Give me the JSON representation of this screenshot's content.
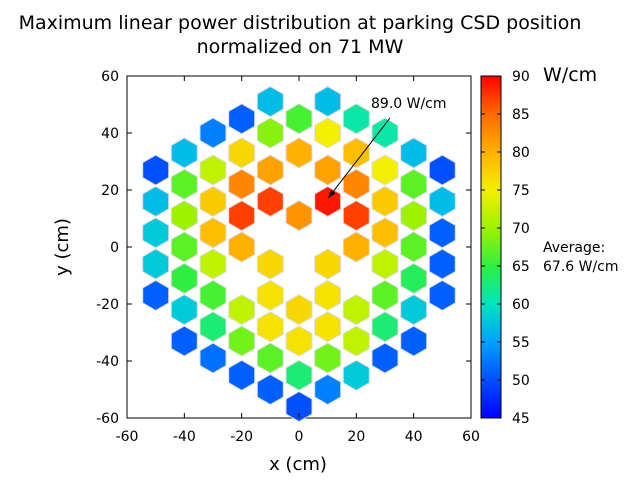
{
  "chart_data": {
    "type": "heatmap",
    "title_lines": [
      "Maximum linear power distribution at parking CSD position",
      "normalized on 71 MW"
    ],
    "xlabel": "x (cm)",
    "ylabel": "y (cm)",
    "xlim": [
      -60,
      60
    ],
    "ylim": [
      -60,
      60
    ],
    "xticks": [
      "-60",
      "-40",
      "-20",
      "0",
      "20",
      "40",
      "60"
    ],
    "yticks": [
      "-60",
      "-40",
      "-20",
      "0",
      "20",
      "40",
      "60"
    ],
    "colorbar": {
      "label": "W/cm",
      "min": 45,
      "max": 90,
      "ticks": [
        "45",
        "50",
        "55",
        "60",
        "65",
        "70",
        "75",
        "80",
        "85",
        "90"
      ],
      "colormap": [
        "#0000ff",
        "#0050ff",
        "#00a0ff",
        "#00e5c0",
        "#30ef40",
        "#9ef200",
        "#f3ef00",
        "#ffb000",
        "#ff6a00",
        "#ff0000"
      ]
    },
    "annotation": {
      "text": "89.0 W/cm",
      "x": 9.5,
      "y": 16.5
    },
    "average_label": "Average:",
    "average_value": "67.6 W/cm",
    "cell_outline": "#dddddd",
    "assemblies": [
      {
        "x": -10,
        "y": 51,
        "v": 57
      },
      {
        "x": 10,
        "y": 51,
        "v": 57
      },
      {
        "x": -20,
        "y": 45,
        "v": 51
      },
      {
        "x": 0,
        "y": 45,
        "v": 66
      },
      {
        "x": 20,
        "y": 45,
        "v": 61
      },
      {
        "x": -30,
        "y": 40,
        "v": 53
      },
      {
        "x": -10,
        "y": 40,
        "v": 69
      },
      {
        "x": 10,
        "y": 40,
        "v": 75
      },
      {
        "x": 30,
        "y": 40,
        "v": 61
      },
      {
        "x": -40,
        "y": 33,
        "v": 57
      },
      {
        "x": -20,
        "y": 33,
        "v": 77
      },
      {
        "x": 0,
        "y": 33,
        "v": 80
      },
      {
        "x": 20,
        "y": 33,
        "v": 79
      },
      {
        "x": 40,
        "y": 33,
        "v": 57
      },
      {
        "x": -50,
        "y": 27,
        "v": 50
      },
      {
        "x": -30,
        "y": 27,
        "v": 72
      },
      {
        "x": -10,
        "y": 27,
        "v": 81
      },
      {
        "x": 10,
        "y": 27,
        "v": 81
      },
      {
        "x": 30,
        "y": 27,
        "v": 75
      },
      {
        "x": 50,
        "y": 27,
        "v": 50
      },
      {
        "x": -40,
        "y": 22,
        "v": 67
      },
      {
        "x": -20,
        "y": 22,
        "v": 83
      },
      {
        "x": 20,
        "y": 22,
        "v": 83
      },
      {
        "x": 40,
        "y": 22,
        "v": 67
      },
      {
        "x": -50,
        "y": 16,
        "v": 57
      },
      {
        "x": -30,
        "y": 16,
        "v": 78
      },
      {
        "x": -10,
        "y": 16,
        "v": 87
      },
      {
        "x": 10,
        "y": 16,
        "v": 89
      },
      {
        "x": 30,
        "y": 16,
        "v": 78
      },
      {
        "x": 50,
        "y": 16,
        "v": 57
      },
      {
        "x": -40,
        "y": 11,
        "v": 70
      },
      {
        "x": -20,
        "y": 11,
        "v": 87
      },
      {
        "x": 0,
        "y": 11,
        "v": 82
      },
      {
        "x": 20,
        "y": 11,
        "v": 87
      },
      {
        "x": 40,
        "y": 11,
        "v": 70
      },
      {
        "x": -50,
        "y": 5,
        "v": 58
      },
      {
        "x": -30,
        "y": 5,
        "v": 79
      },
      {
        "x": 30,
        "y": 5,
        "v": 79
      },
      {
        "x": 50,
        "y": 5,
        "v": 51
      },
      {
        "x": -40,
        "y": 0,
        "v": 67
      },
      {
        "x": -20,
        "y": 0,
        "v": 80
      },
      {
        "x": 20,
        "y": 0,
        "v": 80
      },
      {
        "x": 40,
        "y": 0,
        "v": 67
      },
      {
        "x": -50,
        "y": -6,
        "v": 58
      },
      {
        "x": -30,
        "y": -6,
        "v": 72
      },
      {
        "x": -10,
        "y": -6,
        "v": 77
      },
      {
        "x": 10,
        "y": -6,
        "v": 77
      },
      {
        "x": 30,
        "y": -6,
        "v": 72
      },
      {
        "x": 50,
        "y": -6,
        "v": 51
      },
      {
        "x": -40,
        "y": -11,
        "v": 65
      },
      {
        "x": 40,
        "y": -11,
        "v": 64
      },
      {
        "x": -50,
        "y": -17,
        "v": 51
      },
      {
        "x": -30,
        "y": -17,
        "v": 66
      },
      {
        "x": -10,
        "y": -17,
        "v": 76
      },
      {
        "x": 10,
        "y": -17,
        "v": 76
      },
      {
        "x": 30,
        "y": -17,
        "v": 67
      },
      {
        "x": 50,
        "y": -17,
        "v": 51
      },
      {
        "x": -40,
        "y": -22,
        "v": 58
      },
      {
        "x": -20,
        "y": -22,
        "v": 72
      },
      {
        "x": 0,
        "y": -22,
        "v": 77
      },
      {
        "x": 20,
        "y": -22,
        "v": 72
      },
      {
        "x": 40,
        "y": -22,
        "v": 58
      },
      {
        "x": -30,
        "y": -28,
        "v": 63
      },
      {
        "x": -10,
        "y": -28,
        "v": 76
      },
      {
        "x": 10,
        "y": -28,
        "v": 76
      },
      {
        "x": 30,
        "y": -28,
        "v": 63
      },
      {
        "x": -40,
        "y": -33,
        "v": 51
      },
      {
        "x": -20,
        "y": -33,
        "v": 68
      },
      {
        "x": 0,
        "y": -33,
        "v": 76
      },
      {
        "x": 20,
        "y": -33,
        "v": 72
      },
      {
        "x": 40,
        "y": -33,
        "v": 51
      },
      {
        "x": -30,
        "y": -39,
        "v": 52
      },
      {
        "x": -10,
        "y": -39,
        "v": 67
      },
      {
        "x": 10,
        "y": -39,
        "v": 68
      },
      {
        "x": 30,
        "y": -39,
        "v": 51
      },
      {
        "x": -20,
        "y": -45,
        "v": 51
      },
      {
        "x": 0,
        "y": -45,
        "v": 63
      },
      {
        "x": 20,
        "y": -45,
        "v": 58
      },
      {
        "x": -10,
        "y": -50,
        "v": 51
      },
      {
        "x": 10,
        "y": -50,
        "v": 53
      },
      {
        "x": 0,
        "y": -56,
        "v": 50
      }
    ]
  }
}
